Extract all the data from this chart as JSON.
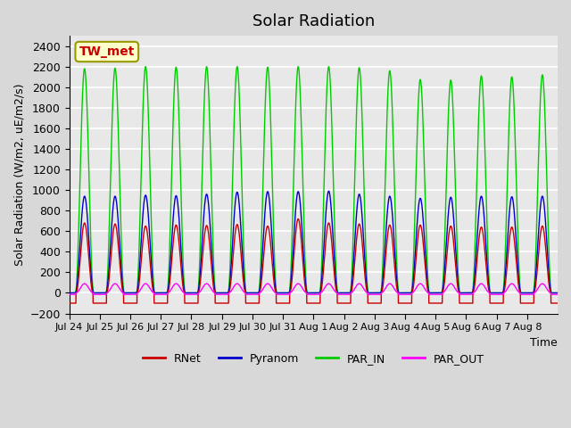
{
  "title": "Solar Radiation",
  "ylabel": "Solar Radiation (W/m2, uE/m2/s)",
  "xlabel": "Time",
  "ylim": [
    -200,
    2500
  ],
  "yticks": [
    -200,
    0,
    200,
    400,
    600,
    800,
    1000,
    1200,
    1400,
    1600,
    1800,
    2000,
    2200,
    2400
  ],
  "xtick_labels": [
    "Jul 24",
    "Jul 25",
    "Jul 26",
    "Jul 27",
    "Jul 28",
    "Jul 29",
    "Jul 30",
    "Jul 31",
    "Aug 1",
    "Aug 2",
    "Aug 3",
    "Aug 4",
    "Aug 5",
    "Aug 6",
    "Aug 7",
    "Aug 8"
  ],
  "colors": {
    "RNet": "#cc0000",
    "Pyranom": "#0000cc",
    "PAR_IN": "#00cc00",
    "PAR_OUT": "#ff00ff"
  },
  "station_label": "TW_met",
  "station_label_color": "#cc0000",
  "station_box_facecolor": "#ffffcc",
  "station_box_edgecolor": "#999900",
  "background_color": "#e8e8e8",
  "grid_color": "#ffffff",
  "n_days": 16,
  "PAR_IN_peaks": [
    2180,
    2185,
    2200,
    2195,
    2200,
    2200,
    2195,
    2200,
    2200,
    2190,
    2160,
    2075,
    2070,
    2110,
    2100,
    2120
  ],
  "Pyranom_peaks": [
    940,
    940,
    950,
    945,
    960,
    980,
    985,
    985,
    990,
    960,
    940,
    920,
    930,
    940,
    935,
    940
  ],
  "RNet_peaks": [
    680,
    670,
    650,
    660,
    655,
    665,
    650,
    720,
    680,
    670,
    660,
    660,
    650,
    640,
    640,
    650
  ],
  "PAR_OUT_peaks": [
    90,
    90,
    90,
    90,
    90,
    90,
    90,
    90,
    90,
    90,
    90,
    90,
    90,
    90,
    90,
    90
  ],
  "RNet_night": -100,
  "PAR_OUT_night": -15
}
